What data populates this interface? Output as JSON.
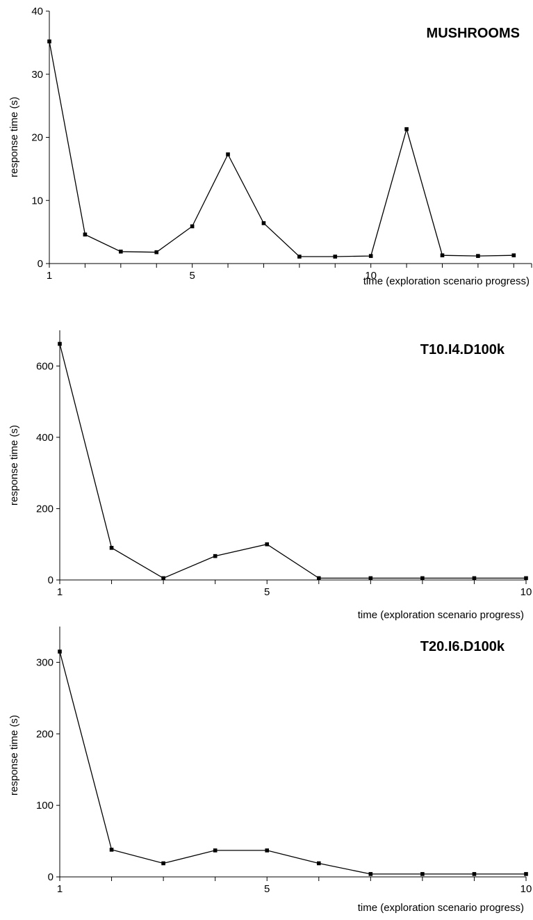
{
  "chart_data": [
    {
      "type": "line",
      "title": "MUSHROOMS",
      "xlabel": "time (exploration scenario progress)",
      "ylabel": "response time (s)",
      "ylim": [
        0,
        40
      ],
      "yticks": [
        0,
        10,
        20,
        30,
        40
      ],
      "xlim": [
        1,
        14.5
      ],
      "xticks": [
        1,
        5,
        10
      ],
      "x": [
        1,
        2,
        3,
        4,
        5,
        6,
        7,
        8,
        9,
        10,
        11,
        12,
        13,
        14
      ],
      "values": [
        35.2,
        4.6,
        1.9,
        1.8,
        5.9,
        17.3,
        6.4,
        1.1,
        1.1,
        1.2,
        21.3,
        1.3,
        1.2,
        1.3
      ],
      "grid": false,
      "legend": "none"
    },
    {
      "type": "line",
      "title": "T10.I4.D100k",
      "xlabel": "time (exploration scenario progress)",
      "ylabel": "response time (s)",
      "ylim": [
        0,
        700
      ],
      "yticks": [
        0,
        200,
        400,
        600
      ],
      "xlim": [
        1,
        10
      ],
      "xticks": [
        1,
        5,
        10
      ],
      "x": [
        1,
        2,
        3,
        4,
        5,
        6,
        7,
        8,
        9,
        10
      ],
      "values": [
        662,
        90,
        5,
        67,
        100,
        5,
        5,
        5,
        5,
        5
      ],
      "grid": false,
      "legend": "none"
    },
    {
      "type": "line",
      "title": "T20.I6.D100k",
      "xlabel": "time (exploration scenario progress)",
      "ylabel": "response time (s)",
      "ylim": [
        0,
        350
      ],
      "yticks": [
        0,
        100,
        200,
        300
      ],
      "xlim": [
        1,
        10
      ],
      "xticks": [
        1,
        5,
        10
      ],
      "x": [
        1,
        2,
        3,
        4,
        5,
        6,
        7,
        8,
        9,
        10
      ],
      "values": [
        315,
        38,
        19,
        37,
        37,
        19,
        4,
        4,
        4,
        4
      ],
      "grid": false,
      "legend": "none"
    }
  ]
}
